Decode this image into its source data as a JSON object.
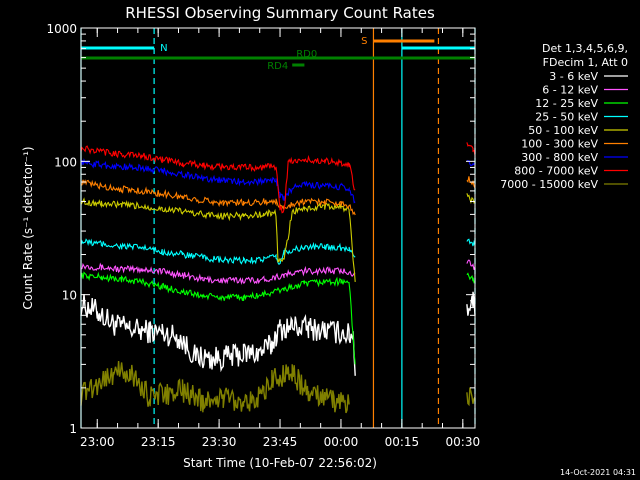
{
  "colors": {
    "background": "#000000",
    "foreground": "#ffffff"
  },
  "chart_data": {
    "type": "line",
    "title": "RHESSI Observing Summary Count Rates",
    "xlabel": "Start Time (10-Feb-07 22:56:02)",
    "ylabel": "Count Rate (s⁻¹ detector⁻¹)",
    "y_scale": "log",
    "ylim": [
      1,
      1000
    ],
    "xlim_minutes": [
      0,
      97
    ],
    "y_ticks": [
      {
        "value": 1,
        "label": "1"
      },
      {
        "value": 10,
        "label": "10"
      },
      {
        "value": 100,
        "label": "100"
      },
      {
        "value": 1000,
        "label": "1000"
      }
    ],
    "x_ticks": [
      {
        "minute": 4,
        "label": "23:00"
      },
      {
        "minute": 19,
        "label": "23:15"
      },
      {
        "minute": 34,
        "label": "23:30"
      },
      {
        "minute": 49,
        "label": "23:45"
      },
      {
        "minute": 64,
        "label": "00:00"
      },
      {
        "minute": 79,
        "label": "00:15"
      },
      {
        "minute": 94,
        "label": "00:30"
      }
    ],
    "legend": {
      "position": "right",
      "header": [
        "Det 1,3,4,5,6,9,",
        "FDecim 1, Att 0"
      ]
    },
    "series": [
      {
        "name": "3 - 6 keV",
        "color": "#ffffff",
        "points": [
          [
            0,
            8.5
          ],
          [
            4,
            7.5
          ],
          [
            8,
            6.0
          ],
          [
            12,
            5.5
          ],
          [
            17,
            5.3
          ],
          [
            20,
            5.2
          ],
          [
            24,
            4.8
          ],
          [
            28,
            3.5
          ],
          [
            32,
            3.3
          ],
          [
            36,
            3.4
          ],
          [
            40,
            3.6
          ],
          [
            44,
            3.7
          ],
          [
            47,
            4.2
          ],
          [
            48,
            5.0
          ],
          [
            49,
            5.5
          ],
          [
            52,
            5.8
          ],
          [
            56,
            5.6
          ],
          [
            60,
            5.4
          ],
          [
            64,
            5.2
          ],
          [
            66,
            5.0
          ],
          [
            67,
            5.0
          ],
          [
            67.5,
            2.8
          ],
          [
            95,
            8
          ],
          [
            96.5,
            9
          ],
          [
            97,
            8
          ]
        ]
      },
      {
        "name": "6 - 12 keV",
        "color": "#ff55ff",
        "points": [
          [
            0,
            16.5
          ],
          [
            5,
            16
          ],
          [
            10,
            15.5
          ],
          [
            15,
            15.5
          ],
          [
            20,
            15
          ],
          [
            25,
            14
          ],
          [
            30,
            13
          ],
          [
            35,
            12.8
          ],
          [
            40,
            12.8
          ],
          [
            45,
            13
          ],
          [
            50,
            14
          ],
          [
            55,
            15
          ],
          [
            60,
            15.2
          ],
          [
            64,
            15
          ],
          [
            66,
            15
          ],
          [
            67.5,
            14
          ],
          [
            95,
            18
          ],
          [
            96.5,
            16
          ],
          [
            97,
            15.5
          ]
        ]
      },
      {
        "name": "12 - 25 keV",
        "color": "#00ff00",
        "points": [
          [
            0,
            14
          ],
          [
            5,
            13.5
          ],
          [
            10,
            13
          ],
          [
            15,
            12.5
          ],
          [
            20,
            11.5
          ],
          [
            25,
            10.5
          ],
          [
            30,
            9.8
          ],
          [
            35,
            9.5
          ],
          [
            40,
            9.5
          ],
          [
            45,
            10
          ],
          [
            50,
            11
          ],
          [
            55,
            12
          ],
          [
            60,
            12.5
          ],
          [
            64,
            12.5
          ],
          [
            66,
            12.5
          ],
          [
            67.5,
            3.0
          ],
          [
            95,
            14
          ],
          [
            96.5,
            13
          ],
          [
            97,
            12.5
          ]
        ]
      },
      {
        "name": "25 - 50 keV",
        "color": "#00ffff",
        "points": [
          [
            0,
            25
          ],
          [
            5,
            24
          ],
          [
            10,
            23
          ],
          [
            15,
            22.5
          ],
          [
            20,
            21
          ],
          [
            25,
            20
          ],
          [
            30,
            19
          ],
          [
            35,
            18
          ],
          [
            40,
            18
          ],
          [
            45,
            18.5
          ],
          [
            48,
            19
          ],
          [
            49,
            17
          ],
          [
            50,
            21
          ],
          [
            55,
            22.5
          ],
          [
            60,
            23
          ],
          [
            64,
            22.5
          ],
          [
            66,
            22
          ],
          [
            67.5,
            20
          ],
          [
            95,
            26
          ],
          [
            96.5,
            24
          ],
          [
            97,
            23
          ]
        ]
      },
      {
        "name": "50 - 100 keV",
        "color": "#cccc00",
        "points": [
          [
            0,
            50
          ],
          [
            5,
            48
          ],
          [
            10,
            47
          ],
          [
            15,
            46
          ],
          [
            20,
            44
          ],
          [
            25,
            42
          ],
          [
            30,
            40
          ],
          [
            35,
            39
          ],
          [
            40,
            39
          ],
          [
            45,
            40
          ],
          [
            47,
            41
          ],
          [
            48,
            40
          ],
          [
            48.5,
            18
          ],
          [
            50,
            18
          ],
          [
            52,
            42
          ],
          [
            55,
            44
          ],
          [
            60,
            46
          ],
          [
            64,
            45
          ],
          [
            66,
            44
          ],
          [
            67.5,
            12
          ],
          [
            95,
            55
          ],
          [
            96.5,
            50
          ],
          [
            97,
            48
          ]
        ]
      },
      {
        "name": "100 - 300 keV",
        "color": "#ff8000",
        "points": [
          [
            0,
            70
          ],
          [
            5,
            65
          ],
          [
            10,
            62
          ],
          [
            15,
            60
          ],
          [
            20,
            57
          ],
          [
            25,
            54
          ],
          [
            30,
            51
          ],
          [
            35,
            49
          ],
          [
            40,
            49
          ],
          [
            45,
            50
          ],
          [
            48,
            50
          ],
          [
            49,
            45
          ],
          [
            50,
            45
          ],
          [
            52,
            48
          ],
          [
            55,
            50
          ],
          [
            60,
            50
          ],
          [
            64,
            48
          ],
          [
            66,
            47
          ],
          [
            67.5,
            40
          ],
          [
            95,
            75
          ],
          [
            96.5,
            70
          ],
          [
            97,
            66
          ]
        ]
      },
      {
        "name": "300 - 800 keV",
        "color": "#0000ff",
        "points": [
          [
            0,
            98
          ],
          [
            5,
            94
          ],
          [
            10,
            91
          ],
          [
            15,
            89
          ],
          [
            20,
            85
          ],
          [
            25,
            80
          ],
          [
            30,
            75
          ],
          [
            35,
            72
          ],
          [
            40,
            70
          ],
          [
            45,
            71
          ],
          [
            48,
            73
          ],
          [
            49,
            55
          ],
          [
            50,
            53
          ],
          [
            51,
            58
          ],
          [
            52,
            63
          ],
          [
            55,
            67
          ],
          [
            60,
            65
          ],
          [
            64,
            64
          ],
          [
            66,
            62
          ],
          [
            67.5,
            50
          ],
          [
            95,
            105
          ],
          [
            96.5,
            95
          ],
          [
            97,
            92
          ]
        ]
      },
      {
        "name": "800 - 7000 keV",
        "color": "#ff0000",
        "points": [
          [
            0,
            125
          ],
          [
            5,
            118
          ],
          [
            10,
            113
          ],
          [
            15,
            110
          ],
          [
            20,
            103
          ],
          [
            25,
            97
          ],
          [
            30,
            93
          ],
          [
            35,
            91
          ],
          [
            40,
            90
          ],
          [
            45,
            90
          ],
          [
            48,
            92
          ],
          [
            49,
            45
          ],
          [
            50,
            42
          ],
          [
            51,
            98
          ],
          [
            55,
            102
          ],
          [
            60,
            101
          ],
          [
            64,
            98
          ],
          [
            66,
            95
          ],
          [
            67.5,
            60
          ],
          [
            95,
            135
          ],
          [
            96.5,
            120
          ],
          [
            97,
            115
          ]
        ]
      },
      {
        "name": "7000 - 15000 keV",
        "color": "#808000",
        "points": [
          [
            0,
            1.8
          ],
          [
            8,
            2.6
          ],
          [
            12,
            2.6
          ],
          [
            17,
            1.7
          ],
          [
            25,
            1.9
          ],
          [
            30,
            1.6
          ],
          [
            35,
            1.7
          ],
          [
            40,
            1.6
          ],
          [
            45,
            1.7
          ],
          [
            47,
            2.4
          ],
          [
            52,
            2.6
          ],
          [
            56,
            1.8
          ],
          [
            62,
            1.6
          ],
          [
            66,
            1.5
          ],
          [
            95,
            1.8
          ],
          [
            97,
            1.6
          ]
        ]
      }
    ],
    "annotations": {
      "flags": [
        {
          "label": "N",
          "color": "#00ffff",
          "start": 0,
          "end": 18
        },
        {
          "label": "",
          "color": "#00ffff",
          "start": 79,
          "end": 97
        },
        {
          "label": "S",
          "color": "#ff8000",
          "start": 72,
          "end": 87
        },
        {
          "label": "RD0",
          "color": "#008000",
          "start": 0,
          "end": 97
        },
        {
          "label": "RD4",
          "color": "#008000",
          "start": 52,
          "end": 55
        }
      ],
      "vertical_lines": [
        {
          "minute": 0,
          "color": "#00ffff",
          "style": "solid"
        },
        {
          "minute": 18,
          "color": "#00ffff",
          "style": "dashed"
        },
        {
          "minute": 72,
          "color": "#ff8000",
          "style": "solid"
        },
        {
          "minute": 79,
          "color": "#00ffff",
          "style": "solid"
        },
        {
          "minute": 88,
          "color": "#ff8000",
          "style": "dashed"
        },
        {
          "minute": 97,
          "color": "#00ffff",
          "style": "dashed"
        }
      ]
    },
    "timestamp": "14-Oct-2021 04:31"
  }
}
